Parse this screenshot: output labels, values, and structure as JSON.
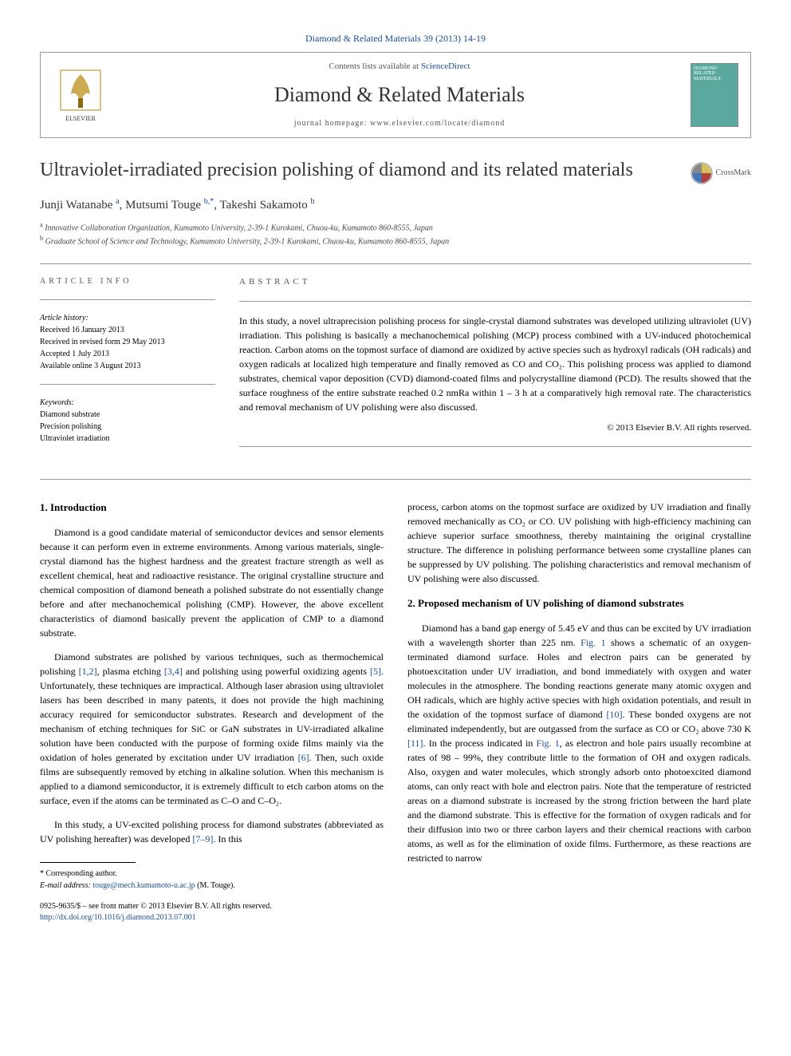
{
  "header": {
    "top_link": "Diamond & Related Materials 39 (2013) 14-19",
    "contents_line_prefix": "Contents lists available at ",
    "contents_line_link": "ScienceDirect",
    "journal_name": "Diamond & Related Materials",
    "homepage_prefix": "journal homepage: ",
    "homepage_url": "www.elsevier.com/locate/diamond",
    "elsevier_label": "ELSEVIER",
    "cover_line1": "DIAMOND",
    "cover_line2": "RELATED",
    "cover_line3": "MATERIALS"
  },
  "crossmark": "CrossMark",
  "title": "Ultraviolet-irradiated precision polishing of diamond and its related materials",
  "authors_html": "Junji Watanabe <sup>a</sup>, Mutsumi Touge <sup>b,*</sup>, Takeshi Sakamoto <sup>b</sup>",
  "affiliations": {
    "a": "Innovative Collaboration Organization, Kumamoto University, 2-39-1 Kurokami, Chuou-ku, Kumamoto 860-8555, Japan",
    "b": "Graduate School of Science and Technology, Kumamoto University, 2-39-1 Kurokami, Chuou-ku, Kumamoto 860-8555, Japan"
  },
  "article_info": {
    "heading": "ARTICLE INFO",
    "history_label": "Article history:",
    "received": "Received 16 January 2013",
    "revised": "Received in revised form 29 May 2013",
    "accepted": "Accepted 1 July 2013",
    "online": "Available online 3 August 2013",
    "keywords_label": "Keywords:",
    "keywords": [
      "Diamond substrate",
      "Precision polishing",
      "Ultraviolet irradiation"
    ]
  },
  "abstract": {
    "heading": "ABSTRACT",
    "text": "In this study, a novel ultraprecision polishing process for single-crystal diamond substrates was developed utilizing ultraviolet (UV) irradiation. This polishing is basically a mechanochemical polishing (MCP) process combined with a UV-induced photochemical reaction. Carbon atoms on the topmost surface of diamond are oxidized by active species such as hydroxyl radicals (OH radicals) and oxygen radicals at localized high temperature and finally removed as CO and CO₂. This polishing process was applied to diamond substrates, chemical vapor deposition (CVD) diamond-coated films and polycrystalline diamond (PCD). The results showed that the surface roughness of the entire substrate reached 0.2 nmRa within 1 – 3 h at a comparatively high removal rate. The characteristics and removal mechanism of UV polishing were also discussed.",
    "copyright": "© 2013 Elsevier B.V. All rights reserved."
  },
  "body": {
    "col1": {
      "heading": "1. Introduction",
      "p1": "Diamond is a good candidate material of semiconductor devices and sensor elements because it can perform even in extreme environments. Among various materials, single-crystal diamond has the highest hardness and the greatest fracture strength as well as excellent chemical, heat and radioactive resistance. The original crystalline structure and chemical composition of diamond beneath a polished substrate do not essentially change before and after mechanochemical polishing (CMP). However, the above excellent characteristics of diamond basically prevent the application of CMP to a diamond substrate.",
      "p2_pre": "Diamond substrates are polished by various techniques, such as thermochemical polishing ",
      "p2_cite1": "[1,2]",
      "p2_mid1": ", plasma etching ",
      "p2_cite2": "[3,4]",
      "p2_mid2": " and polishing using powerful oxidizing agents ",
      "p2_cite3": "[5]",
      "p2_mid3": ". Unfortunately, these techniques are impractical. Although laser abrasion using ultraviolet lasers has been described in many patents, it does not provide the high machining accuracy required for semiconductor substrates. Research and development of the mechanism of etching techniques for SiC or GaN substrates in UV-irradiated alkaline solution have been conducted with the purpose of forming oxide films mainly via the oxidation of holes generated by excitation under UV irradiation ",
      "p2_cite4": "[6]",
      "p2_post": ". Then, such oxide films are subsequently removed by etching in alkaline solution. When this mechanism is applied to a diamond semiconductor, it is extremely difficult to etch carbon atoms on the surface, even if the atoms can be terminated as C–O and C–O₂.",
      "p3_pre": "In this study, a UV-excited polishing process for diamond substrates (abbreviated as UV polishing hereafter) was developed ",
      "p3_cite1": "[7–9]",
      "p3_post": ". In this"
    },
    "col2": {
      "p1": "process, carbon atoms on the topmost surface are oxidized by UV irradiation and finally removed mechanically as CO₂ or CO. UV polishing with high-efficiency machining can achieve superior surface smoothness, thereby maintaining the original crystalline structure. The difference in polishing performance between some crystalline planes can be suppressed by UV polishing. The polishing characteristics and removal mechanism of UV polishing were also discussed.",
      "heading": "2. Proposed mechanism of UV polishing of diamond substrates",
      "p2_pre": "Diamond has a band gap energy of 5.45 eV and thus can be excited by UV irradiation with a wavelength shorter than 225 nm. ",
      "p2_fig1": "Fig. 1",
      "p2_mid1": " shows a schematic of an oxygen-terminated diamond surface. Holes and electron pairs can be generated by photoexcitation under UV irradiation, and bond immediately with oxygen and water molecules in the atmosphere. The bonding reactions generate many atomic oxygen and OH radicals, which are highly active species with high oxidation potentials, and result in the oxidation of the topmost surface of diamond ",
      "p2_cite1": "[10]",
      "p2_mid2": ". These bonded oxygens are not eliminated independently, but are outgassed from the surface as CO or CO₂ above 730 K ",
      "p2_cite2": "[11]",
      "p2_mid3": ". In the process indicated in ",
      "p2_fig2": "Fig. 1",
      "p2_post": ", as electron and hole pairs usually recombine at rates of 98 – 99%, they contribute little to the formation of OH and oxygen radicals. Also, oxygen and water molecules, which strongly adsorb onto photoexcited diamond atoms, can only react with hole and electron pairs. Note that the temperature of restricted areas on a diamond substrate is increased by the strong friction between the hard plate and the diamond substrate. This is effective for the formation of oxygen radicals and for their diffusion into two or three carbon layers and their chemical reactions with carbon atoms, as well as for the elimination of oxide films. Furthermore, as these reactions are restricted to narrow"
    }
  },
  "footer": {
    "corresponding": "* Corresponding author.",
    "email_label": "E-mail address: ",
    "email": "touge@mech.kumamoto-u.ac.jp",
    "email_suffix": " (M. Touge).",
    "issn": "0925-9635/$ – see front matter © 2013 Elsevier B.V. All rights reserved.",
    "doi": "http://dx.doi.org/10.1016/j.diamond.2013.07.001"
  },
  "colors": {
    "link": "#1a4d8f",
    "text": "#000000",
    "muted": "#555555",
    "border": "#999999",
    "cover_bg": "#5ba89e"
  }
}
